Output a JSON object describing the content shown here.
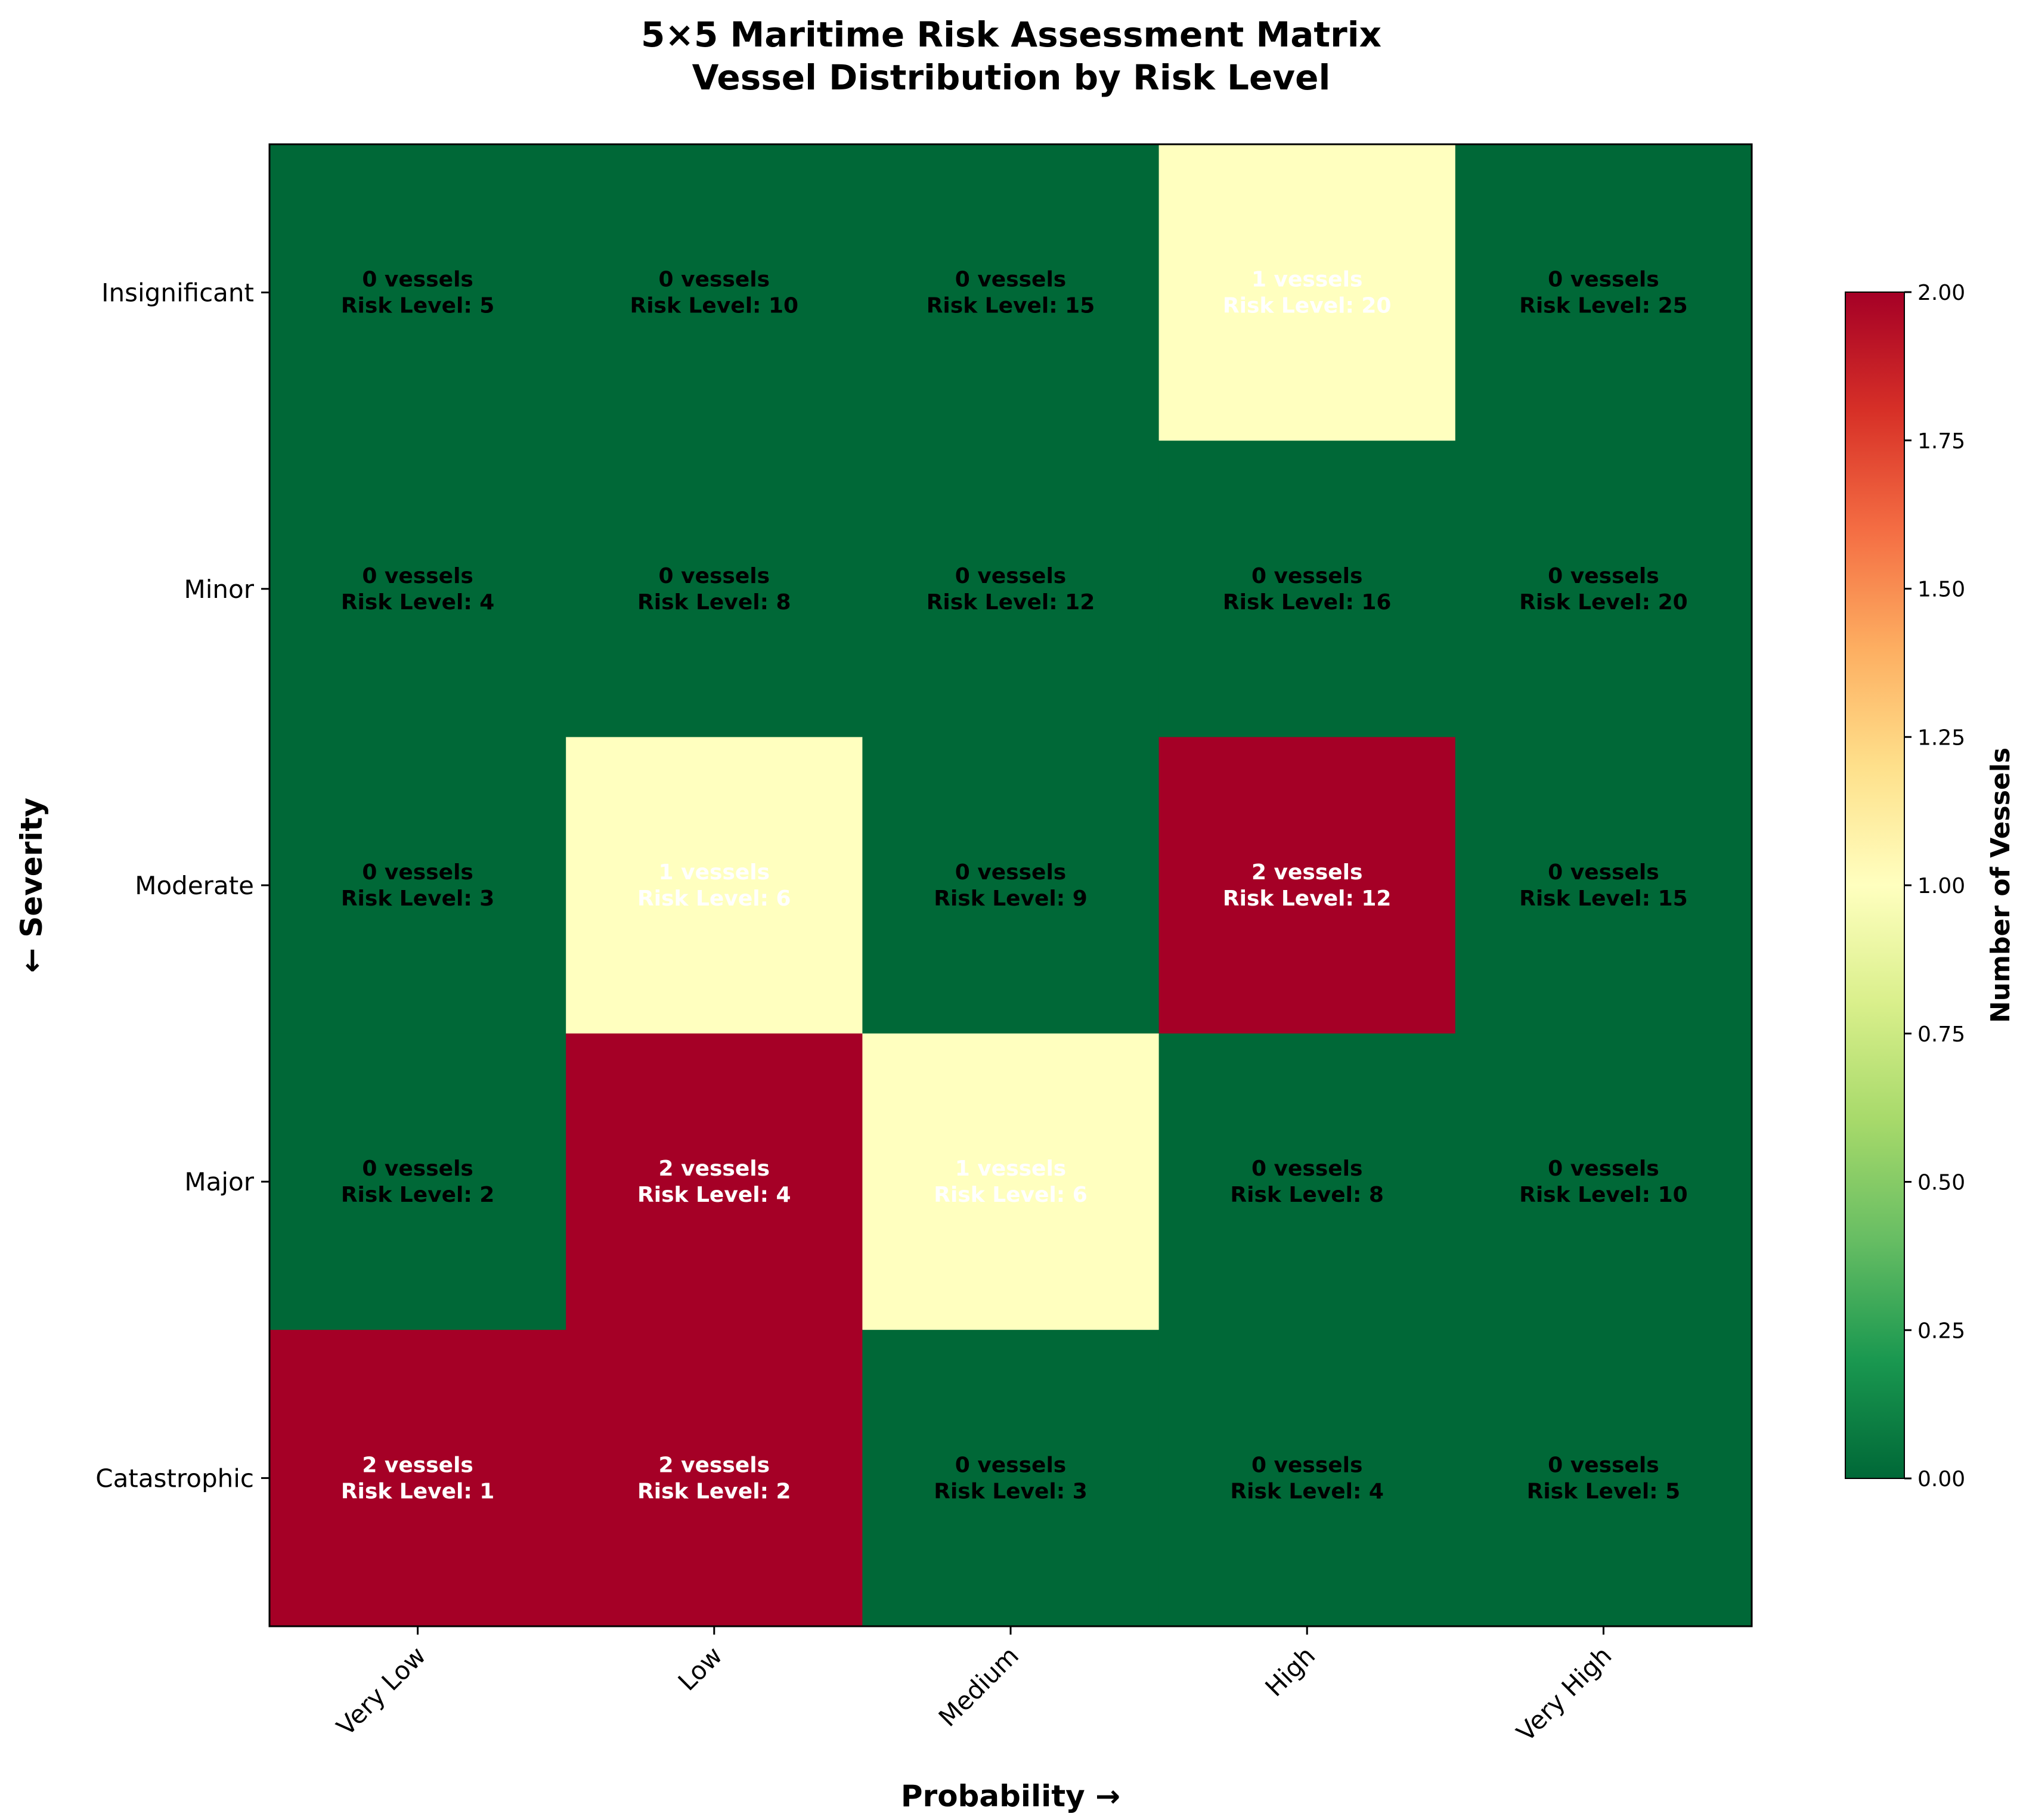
{
  "chart_data": {
    "type": "heatmap",
    "title_lines": [
      "5×5 Maritime Risk Assessment Matrix",
      "Vessel Distribution by Risk Level"
    ],
    "xlabel": "Probability →",
    "ylabel": "← Severity",
    "x_categories": [
      "Very Low",
      "Low",
      "Medium",
      "High",
      "Very High"
    ],
    "y_categories": [
      "Insignificant",
      "Minor",
      "Moderate",
      "Major",
      "Catastrophic"
    ],
    "vessel_counts": [
      [
        0,
        0,
        0,
        1,
        0
      ],
      [
        0,
        0,
        0,
        0,
        0
      ],
      [
        0,
        1,
        0,
        2,
        0
      ],
      [
        0,
        2,
        1,
        0,
        0
      ],
      [
        2,
        2,
        0,
        0,
        0
      ]
    ],
    "risk_levels": [
      [
        5,
        10,
        15,
        20,
        25
      ],
      [
        4,
        8,
        12,
        16,
        20
      ],
      [
        3,
        6,
        9,
        12,
        15
      ],
      [
        2,
        4,
        6,
        8,
        10
      ],
      [
        1,
        2,
        3,
        4,
        5
      ]
    ],
    "count_suffix": "vessels",
    "risk_prefix": "Risk Level:",
    "colorbar": {
      "label": "Number of Vessels",
      "range": [
        0,
        2
      ],
      "ticks": [
        "0.00",
        "0.25",
        "0.50",
        "0.75",
        "1.00",
        "1.25",
        "1.50",
        "1.75",
        "2.00"
      ],
      "colormap": "RdYlGn_r",
      "stops": [
        "#006837",
        "#1a9850",
        "#66bd63",
        "#a6d96a",
        "#d9ef8b",
        "#ffffbf",
        "#fee08b",
        "#fdae61",
        "#f46d43",
        "#d73027",
        "#a50026"
      ]
    }
  }
}
